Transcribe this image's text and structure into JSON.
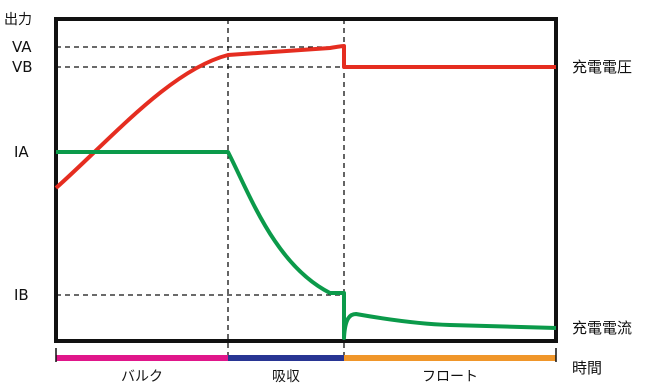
{
  "y_axis": {
    "title": "出力",
    "levels": {
      "VA": "VA",
      "VB": "VB",
      "IA": "IA",
      "IB": "IB"
    }
  },
  "x_axis": {
    "title": "時間",
    "phases": [
      {
        "label": "バルク",
        "color": "#e0168a"
      },
      {
        "label": "吸収",
        "color": "#283593"
      },
      {
        "label": "フロート",
        "color": "#f0962a"
      }
    ]
  },
  "curves": {
    "voltage": {
      "label": "充電電圧",
      "color": "#e52d20"
    },
    "current": {
      "label": "充電電流",
      "color": "#0b9a4a"
    }
  }
}
